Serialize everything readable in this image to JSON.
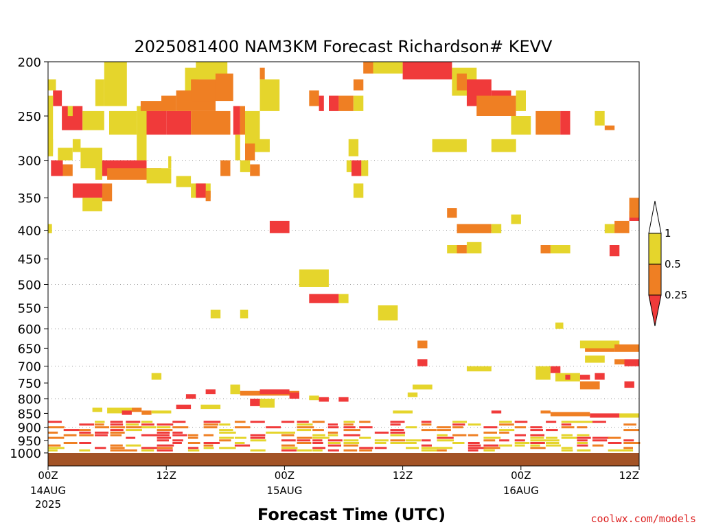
{
  "chart_data": {
    "type": "heatmap",
    "title": "2025081400 NAM3KM Forecast Richardson# KEVV",
    "xlabel": "Forecast Time (UTC)",
    "ylabel": "",
    "watermark": "coolwx.com/models",
    "x_range_hours": [
      0,
      60
    ],
    "y_range_hpa": [
      200,
      1000
    ],
    "y_scale": "log-pressure",
    "y_ticks": [
      200,
      250,
      300,
      350,
      400,
      450,
      500,
      550,
      600,
      650,
      700,
      750,
      800,
      850,
      900,
      950,
      1000
    ],
    "y_gridlines": [
      300,
      400,
      500,
      600,
      700,
      800,
      900
    ],
    "x_ticks": [
      {
        "hour": 0,
        "label": "00Z",
        "date": "14AUG",
        "year": "2025"
      },
      {
        "hour": 12,
        "label": "12Z",
        "date": "",
        "year": ""
      },
      {
        "hour": 24,
        "label": "00Z",
        "date": "15AUG",
        "year": ""
      },
      {
        "hour": 36,
        "label": "12Z",
        "date": "",
        "year": ""
      },
      {
        "hour": 48,
        "label": "00Z",
        "date": "16AUG",
        "year": ""
      },
      {
        "hour": 60,
        "label": "12Z",
        "date": "",
        "year": ""
      }
    ],
    "colorbar": {
      "levels": [
        "1",
        "0.5",
        "0.25"
      ],
      "classes": [
        {
          "name": "lt025",
          "range": "< 0.25",
          "color": "#f03a3a"
        },
        {
          "name": "025to05",
          "range": "0.25 - 0.5",
          "color": "#ef7f23"
        },
        {
          "name": "05to1",
          "range": "0.5 - 1",
          "color": "#e5d52c"
        },
        {
          "name": "ge1",
          "range": ">= 1",
          "color": "#ffffff"
        }
      ]
    },
    "ground_color": "#a35326",
    "cells": [
      [
        5.7,
        8.0,
        200,
        240,
        "y"
      ],
      [
        13.9,
        15.3,
        205,
        240,
        "y"
      ],
      [
        4.8,
        5.7,
        215,
        240,
        "y"
      ],
      [
        0.0,
        0.8,
        215,
        225,
        "y"
      ],
      [
        0.5,
        1.4,
        225,
        240,
        "r"
      ],
      [
        0.0,
        0.5,
        230,
        290,
        "y"
      ],
      [
        1.4,
        3.5,
        240,
        265,
        "r"
      ],
      [
        2.0,
        2.5,
        240,
        250,
        "y"
      ],
      [
        3.5,
        5.7,
        245,
        265,
        "y"
      ],
      [
        6.2,
        9.0,
        245,
        270,
        "y"
      ],
      [
        9.0,
        10.0,
        240,
        300,
        "y"
      ],
      [
        9.4,
        12.0,
        235,
        245,
        "o"
      ],
      [
        10.0,
        12.0,
        245,
        270,
        "r"
      ],
      [
        12.0,
        14.5,
        245,
        270,
        "r"
      ],
      [
        14.5,
        18.5,
        245,
        270,
        "o"
      ],
      [
        11.5,
        13.0,
        230,
        245,
        "o"
      ],
      [
        13.0,
        17.0,
        225,
        245,
        "o"
      ],
      [
        14.5,
        17.0,
        215,
        235,
        "o"
      ],
      [
        15.0,
        18.2,
        200,
        215,
        "y"
      ],
      [
        17.0,
        18.8,
        210,
        235,
        "o"
      ],
      [
        18.8,
        19.5,
        240,
        270,
        "r"
      ],
      [
        19.5,
        20.0,
        240,
        270,
        "o"
      ],
      [
        20.0,
        21.5,
        245,
        290,
        "y"
      ],
      [
        21.5,
        22.0,
        205,
        215,
        "o"
      ],
      [
        21.5,
        23.5,
        215,
        245,
        "y"
      ],
      [
        26.5,
        27.5,
        225,
        240,
        "o"
      ],
      [
        27.5,
        28.0,
        230,
        245,
        "r"
      ],
      [
        28.5,
        29.5,
        230,
        245,
        "r"
      ],
      [
        29.5,
        31.0,
        230,
        245,
        "o"
      ],
      [
        31.0,
        32.0,
        230,
        245,
        "y"
      ],
      [
        31.0,
        32.0,
        215,
        225,
        "o"
      ],
      [
        32.0,
        33.0,
        200,
        210,
        "o"
      ],
      [
        33.0,
        36.0,
        200,
        210,
        "y"
      ],
      [
        36.0,
        41.0,
        200,
        215,
        "r"
      ],
      [
        41.0,
        43.5,
        205,
        230,
        "y"
      ],
      [
        41.5,
        42.5,
        210,
        225,
        "o"
      ],
      [
        42.5,
        45.0,
        215,
        240,
        "r"
      ],
      [
        45.0,
        47.0,
        225,
        245,
        "r"
      ],
      [
        43.5,
        47.5,
        230,
        250,
        "o"
      ],
      [
        47.5,
        48.5,
        225,
        245,
        "y"
      ],
      [
        47.0,
        49.0,
        250,
        270,
        "y"
      ],
      [
        49.5,
        52.0,
        245,
        270,
        "o"
      ],
      [
        52.0,
        53.0,
        245,
        270,
        "r"
      ],
      [
        55.5,
        56.5,
        245,
        260,
        "y"
      ],
      [
        56.5,
        57.5,
        260,
        265,
        "o"
      ],
      [
        0.0,
        0.5,
        275,
        295,
        "y"
      ],
      [
        1.0,
        2.5,
        285,
        300,
        "y"
      ],
      [
        0.3,
        1.5,
        300,
        320,
        "r"
      ],
      [
        1.5,
        2.5,
        305,
        320,
        "o"
      ],
      [
        2.5,
        3.3,
        275,
        290,
        "y"
      ],
      [
        3.3,
        5.5,
        285,
        310,
        "y"
      ],
      [
        4.8,
        5.5,
        295,
        325,
        "y"
      ],
      [
        5.5,
        10.0,
        300,
        320,
        "r"
      ],
      [
        6.0,
        11.5,
        310,
        325,
        "o"
      ],
      [
        10.0,
        12.5,
        310,
        330,
        "y"
      ],
      [
        12.2,
        12.5,
        295,
        310,
        "y"
      ],
      [
        13.0,
        14.5,
        320,
        335,
        "y"
      ],
      [
        14.5,
        16.5,
        330,
        350,
        "y"
      ],
      [
        15.0,
        16.0,
        330,
        350,
        "r"
      ],
      [
        16.0,
        16.5,
        340,
        355,
        "o"
      ],
      [
        17.5,
        18.5,
        300,
        320,
        "o"
      ],
      [
        19.0,
        19.5,
        270,
        300,
        "y"
      ],
      [
        19.5,
        20.5,
        300,
        315,
        "y"
      ],
      [
        20.5,
        21.5,
        305,
        320,
        "o"
      ],
      [
        20.0,
        21.0,
        280,
        300,
        "o"
      ],
      [
        21.5,
        22.5,
        275,
        290,
        "y"
      ],
      [
        2.5,
        5.5,
        330,
        350,
        "r"
      ],
      [
        3.5,
        5.5,
        350,
        370,
        "y"
      ],
      [
        5.5,
        6.5,
        330,
        355,
        "o"
      ],
      [
        30.3,
        30.8,
        300,
        315,
        "y"
      ],
      [
        30.8,
        31.8,
        300,
        320,
        "r"
      ],
      [
        31.8,
        32.5,
        300,
        320,
        "y"
      ],
      [
        31.0,
        32.0,
        330,
        350,
        "y"
      ],
      [
        39.0,
        42.5,
        275,
        290,
        "y"
      ],
      [
        45.0,
        47.5,
        275,
        290,
        "y"
      ],
      [
        30.5,
        31.5,
        275,
        295,
        "y"
      ],
      [
        0.0,
        0.4,
        390,
        405,
        "y"
      ],
      [
        22.5,
        24.5,
        385,
        405,
        "r"
      ],
      [
        40.5,
        41.5,
        365,
        380,
        "o"
      ],
      [
        41.5,
        45.0,
        390,
        405,
        "o"
      ],
      [
        45.0,
        46.0,
        390,
        405,
        "y"
      ],
      [
        40.5,
        41.5,
        425,
        440,
        "y"
      ],
      [
        41.5,
        42.5,
        425,
        440,
        "o"
      ],
      [
        42.5,
        44.0,
        420,
        440,
        "y"
      ],
      [
        47.0,
        48.0,
        375,
        390,
        "y"
      ],
      [
        50.0,
        51.0,
        425,
        440,
        "o"
      ],
      [
        51.0,
        53.0,
        425,
        440,
        "y"
      ],
      [
        56.5,
        57.5,
        390,
        405,
        "y"
      ],
      [
        57.5,
        59.0,
        385,
        405,
        "o"
      ],
      [
        59.0,
        60.0,
        370,
        385,
        "r"
      ],
      [
        59.0,
        60.0,
        350,
        380,
        "o"
      ],
      [
        57.0,
        58.0,
        425,
        445,
        "r"
      ],
      [
        25.5,
        28.5,
        470,
        505,
        "y"
      ],
      [
        26.5,
        29.5,
        520,
        540,
        "r"
      ],
      [
        29.5,
        30.5,
        520,
        540,
        "y"
      ],
      [
        16.5,
        17.5,
        555,
        575,
        "y"
      ],
      [
        19.5,
        20.3,
        555,
        575,
        "y"
      ],
      [
        33.5,
        35.5,
        545,
        580,
        "y"
      ],
      [
        51.5,
        52.3,
        585,
        600,
        "y"
      ],
      [
        37.5,
        38.5,
        630,
        650,
        "o"
      ],
      [
        37.5,
        38.5,
        680,
        700,
        "r"
      ],
      [
        42.5,
        45.0,
        700,
        715,
        "y"
      ],
      [
        54.5,
        57.5,
        640,
        660,
        "o"
      ],
      [
        54.0,
        58.0,
        630,
        650,
        "y"
      ],
      [
        57.5,
        60.0,
        640,
        660,
        "o"
      ],
      [
        54.5,
        56.5,
        670,
        690,
        "y"
      ],
      [
        57.5,
        58.5,
        680,
        695,
        "o"
      ],
      [
        58.5,
        60.0,
        680,
        700,
        "r"
      ],
      [
        49.5,
        51.0,
        700,
        740,
        "y"
      ],
      [
        51.0,
        52.0,
        700,
        720,
        "r"
      ],
      [
        51.5,
        54.0,
        720,
        745,
        "y"
      ],
      [
        52.5,
        53.0,
        725,
        740,
        "r"
      ],
      [
        54.0,
        56.0,
        745,
        770,
        "o"
      ],
      [
        54.0,
        55.0,
        725,
        740,
        "r"
      ],
      [
        55.5,
        56.5,
        720,
        740,
        "r"
      ],
      [
        58.5,
        59.5,
        745,
        765,
        "r"
      ],
      [
        10.5,
        11.5,
        720,
        740,
        "y"
      ],
      [
        37.0,
        39.0,
        755,
        770,
        "y"
      ],
      [
        18.5,
        19.5,
        755,
        785,
        "y"
      ],
      [
        19.5,
        25.5,
        775,
        790,
        "o"
      ],
      [
        21.5,
        24.5,
        770,
        785,
        "r"
      ],
      [
        24.5,
        25.5,
        780,
        800,
        "r"
      ],
      [
        14.0,
        15.0,
        785,
        800,
        "r"
      ],
      [
        16.0,
        17.0,
        770,
        785,
        "r"
      ],
      [
        20.5,
        21.5,
        800,
        825,
        "r"
      ],
      [
        21.5,
        23.0,
        800,
        830,
        "y"
      ],
      [
        26.5,
        27.5,
        790,
        805,
        "y"
      ],
      [
        27.5,
        28.5,
        795,
        810,
        "r"
      ],
      [
        29.5,
        30.5,
        795,
        810,
        "r"
      ],
      [
        36.5,
        37.5,
        780,
        795,
        "y"
      ],
      [
        4.5,
        5.5,
        830,
        845,
        "y"
      ],
      [
        6.0,
        8.5,
        830,
        850,
        "y"
      ],
      [
        7.5,
        8.5,
        840,
        855,
        "r"
      ],
      [
        8.5,
        9.5,
        830,
        845,
        "o"
      ],
      [
        9.5,
        10.5,
        840,
        855,
        "o"
      ],
      [
        10.5,
        12.5,
        840,
        850,
        "y"
      ],
      [
        13.0,
        14.5,
        820,
        835,
        "r"
      ],
      [
        15.5,
        17.5,
        820,
        835,
        "y"
      ],
      [
        35.0,
        37.0,
        840,
        850,
        "y"
      ],
      [
        45.0,
        46.0,
        840,
        850,
        "r"
      ],
      [
        50.0,
        51.0,
        840,
        850,
        "o"
      ],
      [
        51.0,
        55.0,
        845,
        860,
        "o"
      ],
      [
        55.0,
        58.0,
        850,
        865,
        "r"
      ],
      [
        58.0,
        60.0,
        850,
        865,
        "y"
      ]
    ],
    "bands": {
      "top_hpa": 880,
      "bottom_hpa": 990,
      "band_count": 12,
      "segments_per_band": 38,
      "colors": [
        "r",
        "o",
        "y"
      ]
    }
  }
}
